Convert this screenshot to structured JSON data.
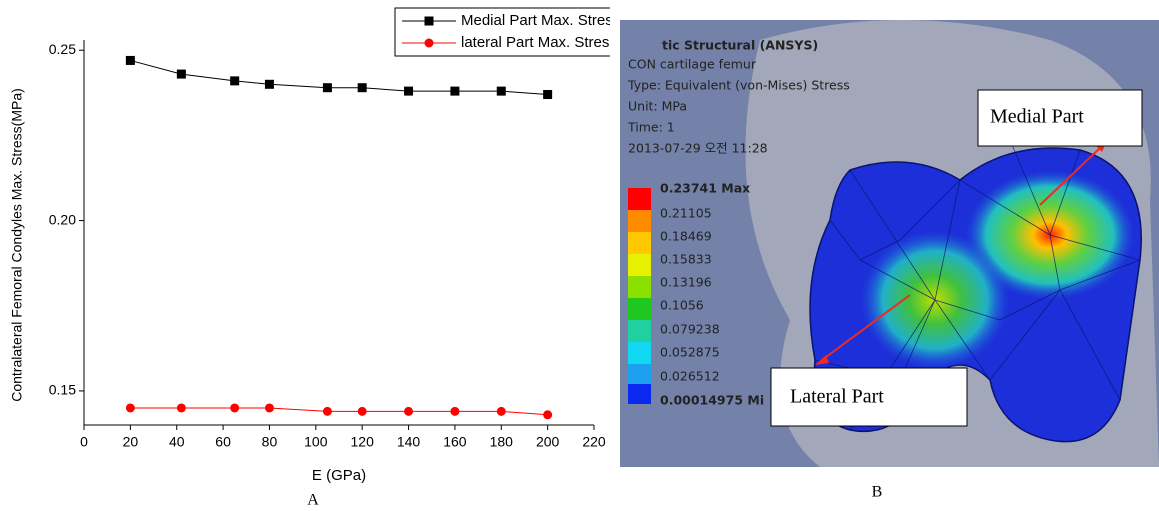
{
  "chart_data": {
    "type": "line",
    "y_label": "Contralateral Femoral Condyles Max. Stress(MPa)",
    "x_label": "E (GPa)",
    "x": [
      20,
      42,
      65,
      80,
      105,
      120,
      140,
      160,
      180,
      200
    ],
    "series": [
      {
        "name": "Medial Part Max. Stress",
        "color": "#000000",
        "marker": "square",
        "values": [
          0.247,
          0.243,
          0.241,
          0.24,
          0.239,
          0.239,
          0.238,
          0.238,
          0.238,
          0.237
        ]
      },
      {
        "name": "lateral Part Max. Stress",
        "color": "#ff0000",
        "marker": "circle",
        "values": [
          0.145,
          0.145,
          0.145,
          0.145,
          0.144,
          0.144,
          0.144,
          0.144,
          0.144,
          0.143
        ]
      }
    ],
    "xlim": [
      0,
      220
    ],
    "xticks": [
      0,
      20,
      40,
      60,
      80,
      100,
      120,
      140,
      160,
      180,
      200,
      220
    ],
    "ylim": [
      0.14,
      0.253
    ],
    "yticks": [
      0.15,
      {
        "value": 0.2,
        "label": "0.20"
      },
      0.25
    ],
    "legend": "top-right"
  },
  "panel_labels": [
    "A",
    "B"
  ],
  "ansys_view": {
    "header": [
      "tic Structural (ANSYS)",
      "CON cartilage femur",
      "Type: Equivalent (von-Mises) Stress",
      "Unit: MPa",
      "Time: 1",
      "2013-07-29 오전 11:28"
    ],
    "scale": [
      "0.23741 Max",
      "0.21105",
      "0.18469",
      "0.15833",
      "0.13196",
      "0.1056",
      "0.079238",
      "0.052875",
      "0.026512",
      "0.00014975 Mi"
    ],
    "callouts": [
      "Medial Part",
      "Lateral Part"
    ]
  }
}
